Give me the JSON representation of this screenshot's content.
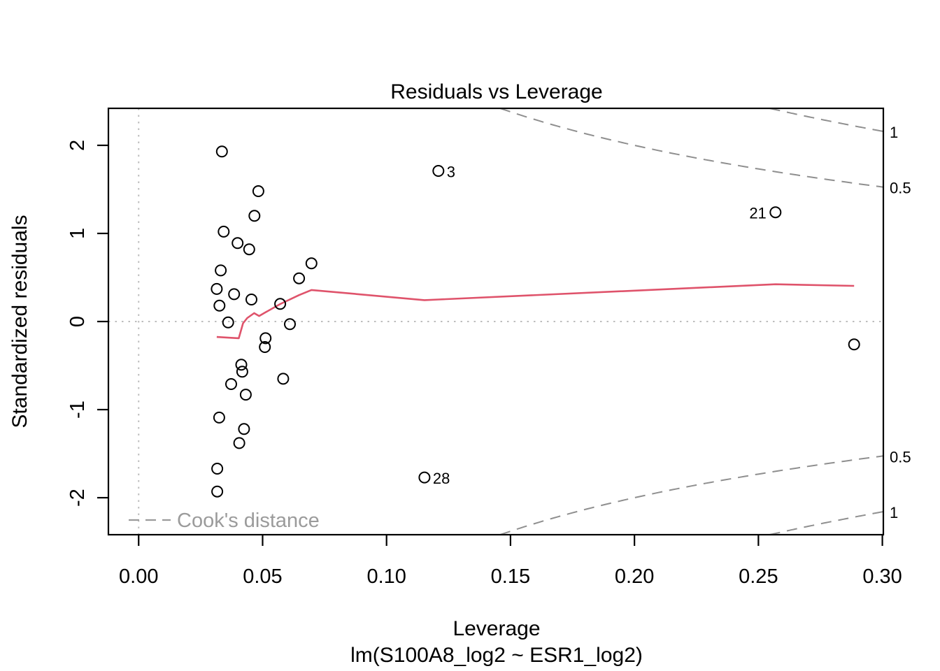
{
  "title": "Residuals vs Leverage",
  "x_axis": {
    "label": "Leverage",
    "ticks": [
      {
        "value": 0.0,
        "label": "0.00"
      },
      {
        "value": 0.05,
        "label": "0.05"
      },
      {
        "value": 0.1,
        "label": "0.10"
      },
      {
        "value": 0.15,
        "label": "0.15"
      },
      {
        "value": 0.2,
        "label": "0.20"
      },
      {
        "value": 0.25,
        "label": "0.25"
      },
      {
        "value": 0.3,
        "label": "0.30"
      }
    ]
  },
  "y_axis": {
    "label": "Standardized residuals",
    "ticks": [
      {
        "value": -2,
        "label": "-2"
      },
      {
        "value": -1,
        "label": "-1"
      },
      {
        "value": 0,
        "label": "0"
      },
      {
        "value": 1,
        "label": "1"
      },
      {
        "value": 2,
        "label": "2"
      }
    ]
  },
  "subtitle": "lm(S100A8_log2 ~ ESR1_log2)",
  "legend": {
    "label": "Cook's distance"
  },
  "colors": {
    "smoother": "#DF536B",
    "contour": "#8f8f8f",
    "reference": "#bdbdbd",
    "gray_label": "#9b9b9b",
    "points": "#000000",
    "axis": "#000000"
  },
  "chart_data": {
    "type": "scatter",
    "title": "Residuals vs Leverage",
    "xlabel": "Leverage",
    "ylabel": "Standardized residuals",
    "xlim": [
      -0.0122,
      0.3004
    ],
    "ylim": [
      -2.42,
      2.42
    ],
    "grid": false,
    "reference_lines": {
      "horizontal_at": 0,
      "vertical_at": 0,
      "style": "dotted"
    },
    "points": [
      {
        "x": 0.0336,
        "y": 1.93
      },
      {
        "x": 0.1209,
        "y": 1.71,
        "label": "3",
        "label_side": "right"
      },
      {
        "x": 0.0483,
        "y": 1.48
      },
      {
        "x": 0.0467,
        "y": 1.2
      },
      {
        "x": 0.0343,
        "y": 1.02
      },
      {
        "x": 0.0399,
        "y": 0.89
      },
      {
        "x": 0.0446,
        "y": 0.82
      },
      {
        "x": 0.0697,
        "y": 0.66
      },
      {
        "x": 0.0647,
        "y": 0.49
      },
      {
        "x": 0.0331,
        "y": 0.58
      },
      {
        "x": 0.0315,
        "y": 0.37
      },
      {
        "x": 0.0385,
        "y": 0.31
      },
      {
        "x": 0.0455,
        "y": 0.25
      },
      {
        "x": 0.0571,
        "y": 0.2
      },
      {
        "x": 0.0326,
        "y": 0.18
      },
      {
        "x": 0.0361,
        "y": -0.01
      },
      {
        "x": 0.061,
        "y": -0.03
      },
      {
        "x": 0.0512,
        "y": -0.19
      },
      {
        "x": 0.0509,
        "y": -0.29
      },
      {
        "x": 0.0414,
        "y": -0.49
      },
      {
        "x": 0.0418,
        "y": -0.57
      },
      {
        "x": 0.0373,
        "y": -0.71
      },
      {
        "x": 0.0432,
        "y": -0.83
      },
      {
        "x": 0.0583,
        "y": -0.65
      },
      {
        "x": 0.0325,
        "y": -1.09
      },
      {
        "x": 0.0425,
        "y": -1.22
      },
      {
        "x": 0.0406,
        "y": -1.38
      },
      {
        "x": 0.0317,
        "y": -1.67
      },
      {
        "x": 0.0317,
        "y": -1.93
      },
      {
        "x": 0.1153,
        "y": -1.77,
        "label": "28",
        "label_side": "right"
      },
      {
        "x": 0.2569,
        "y": 1.24,
        "label": "21",
        "label_side": "left"
      },
      {
        "x": 0.2886,
        "y": -0.26
      }
    ],
    "smoother": [
      [
        0.0315,
        -0.175
      ],
      [
        0.0373,
        -0.185
      ],
      [
        0.0404,
        -0.19
      ],
      [
        0.0421,
        -0.02
      ],
      [
        0.0438,
        0.04
      ],
      [
        0.0466,
        0.095
      ],
      [
        0.0486,
        0.063
      ],
      [
        0.0512,
        0.105
      ],
      [
        0.0571,
        0.198
      ],
      [
        0.0647,
        0.3
      ],
      [
        0.0697,
        0.358
      ],
      [
        0.1153,
        0.243
      ],
      [
        0.1209,
        0.25
      ],
      [
        0.2569,
        0.423
      ],
      [
        0.2886,
        0.405
      ]
    ],
    "cooks_contours": {
      "levels": [
        0.5,
        1
      ],
      "p": 2,
      "labels": [
        "0.5",
        "1"
      ],
      "note": "std.resid = ±sqrt(D*p*(1-h)/h), labels drawn at right edge top and bottom"
    }
  }
}
